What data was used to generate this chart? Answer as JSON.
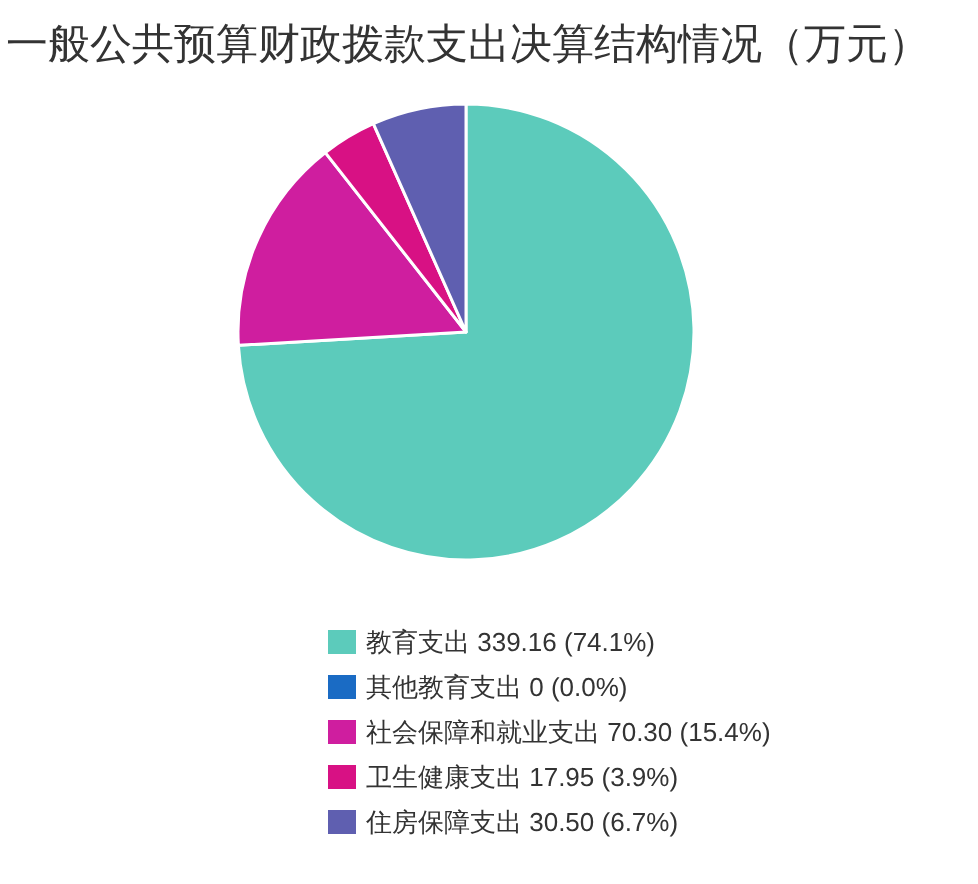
{
  "chart_data": {
    "type": "pie",
    "title": "一般公共预算财政拨款支出决算结构情况（万元）",
    "categories": [
      "教育支出",
      "其他教育支出",
      "社会保障和就业支出",
      "卫生健康支出",
      "住房保障支出"
    ],
    "values": [
      339.16,
      0,
      70.3,
      17.95,
      30.5
    ],
    "colors": [
      "#5ccbbb",
      "#1a6bc4",
      "#cf1e9f",
      "#d81184",
      "#5f5fb0"
    ],
    "value_labels": [
      "339.16 (74.1%)",
      "0 (0.0%)",
      "70.30 (15.4%)",
      "17.95 (3.9%)",
      "30.50 (6.7%)"
    ],
    "legend": "bottom"
  }
}
